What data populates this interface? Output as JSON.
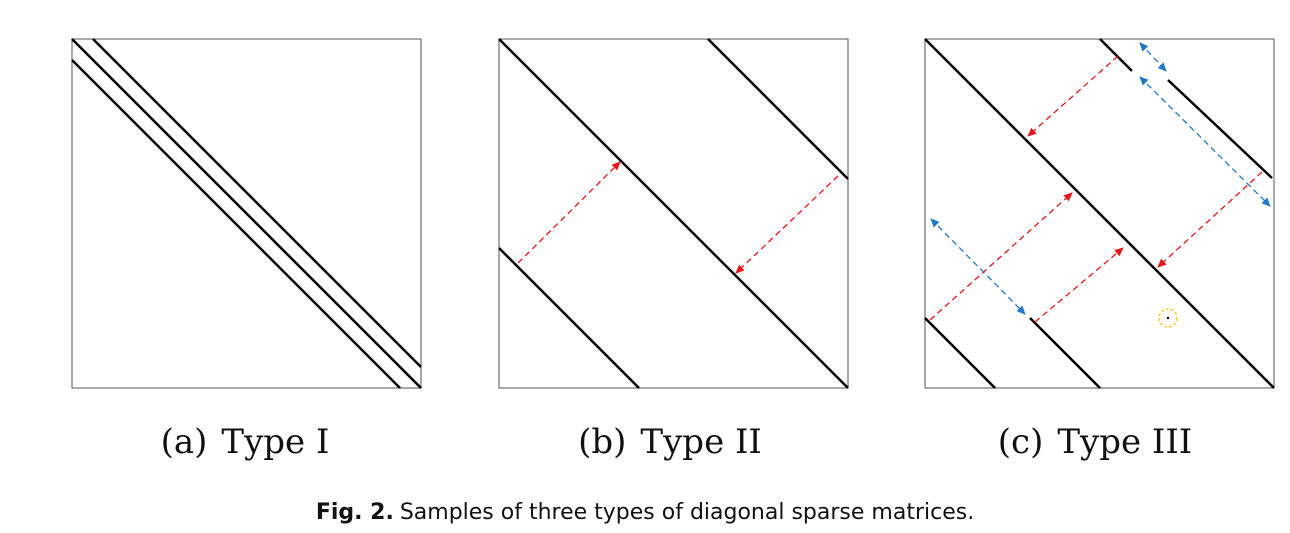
{
  "figure": {
    "caption_label": "Fig. 2.",
    "caption_text": "Samples of three types of diagonal sparse matrices."
  },
  "panels": [
    {
      "label": "(a)",
      "title": "Type I"
    },
    {
      "label": "(b)",
      "title": "Type II"
    },
    {
      "label": "(c)",
      "title": "Type III"
    }
  ],
  "colors": {
    "diagonal": "#000000",
    "frame": "#555555",
    "shift_arrow": "#e8141b",
    "gap_arrow": "#1f78c8",
    "marker": "#f2c200"
  }
}
